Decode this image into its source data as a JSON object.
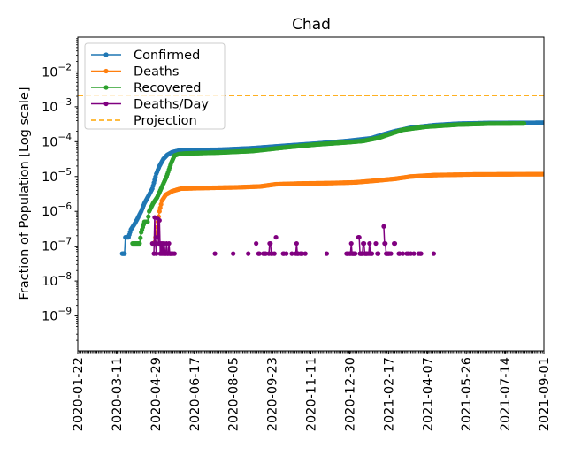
{
  "chart_data": {
    "type": "line",
    "title": "Chad",
    "xlabel": "",
    "ylabel": "Fraction of Population [Log scale]",
    "yscale": "log",
    "ylim": [
      1e-10,
      0.1
    ],
    "x_origin": "2020-01-22",
    "x_unit": "days since x_origin",
    "xlim": [
      0,
      588
    ],
    "x_tick_labels": [
      "2020-01-22",
      "2020-03-11",
      "2020-04-29",
      "2020-06-17",
      "2020-08-05",
      "2020-09-23",
      "2020-11-11",
      "2020-12-30",
      "2021-02-17",
      "2021-04-07",
      "2021-05-26",
      "2021-07-14",
      "2021-09-01"
    ],
    "y_ticks": [
      {
        "value": 0.01,
        "base": "10",
        "exp": "−2"
      },
      {
        "value": 0.001,
        "base": "10",
        "exp": "−3"
      },
      {
        "value": 0.0001,
        "base": "10",
        "exp": "−4"
      },
      {
        "value": 1e-05,
        "base": "10",
        "exp": "−5"
      },
      {
        "value": 1e-06,
        "base": "10",
        "exp": "−6"
      },
      {
        "value": 1e-07,
        "base": "10",
        "exp": "−7"
      },
      {
        "value": 1e-08,
        "base": "10",
        "exp": "−8"
      },
      {
        "value": 1e-09,
        "base": "10",
        "exp": "−9"
      }
    ],
    "grid": false,
    "legend_position": "top-left",
    "series": [
      {
        "name": "Confirmed",
        "color": "#1f77b4",
        "style": "line-dots",
        "points": [
          [
            56,
            6.1e-08
          ],
          [
            59,
            6.1e-08
          ],
          [
            60,
            1.8e-07
          ],
          [
            64,
            1.8e-07
          ],
          [
            67,
            3e-07
          ],
          [
            72,
            4.5e-07
          ],
          [
            75,
            6e-07
          ],
          [
            80,
            1e-06
          ],
          [
            84,
            1.7e-06
          ],
          [
            90,
            3e-06
          ],
          [
            94,
            4.5e-06
          ],
          [
            97,
            8e-06
          ],
          [
            99,
            1.2e-05
          ],
          [
            103,
            2e-05
          ],
          [
            108,
            3.2e-05
          ],
          [
            113,
            4.2e-05
          ],
          [
            119,
            5e-05
          ],
          [
            127,
            5.5e-05
          ],
          [
            136,
            5.7e-05
          ],
          [
            180,
            5.9e-05
          ],
          [
            220,
            6.5e-05
          ],
          [
            260,
            7.6e-05
          ],
          [
            300,
            8.8e-05
          ],
          [
            340,
            0.000105
          ],
          [
            370,
            0.000125
          ],
          [
            385,
            0.00016
          ],
          [
            400,
            0.0002
          ],
          [
            420,
            0.00025
          ],
          [
            450,
            0.0003
          ],
          [
            480,
            0.00033
          ],
          [
            520,
            0.000345
          ],
          [
            588,
            0.00035
          ]
        ]
      },
      {
        "name": "Deaths",
        "color": "#ff7f0e",
        "style": "line-dots",
        "points": [
          [
            97,
            1.3e-07
          ],
          [
            99,
            2.5e-07
          ],
          [
            101,
            5e-07
          ],
          [
            103,
            1e-06
          ],
          [
            106,
            2e-06
          ],
          [
            111,
            3e-06
          ],
          [
            119,
            3.8e-06
          ],
          [
            130,
            4.5e-06
          ],
          [
            160,
            4.7e-06
          ],
          [
            200,
            4.9e-06
          ],
          [
            230,
            5.2e-06
          ],
          [
            250,
            6e-06
          ],
          [
            280,
            6.3e-06
          ],
          [
            320,
            6.5e-06
          ],
          [
            350,
            6.8e-06
          ],
          [
            375,
            7.6e-06
          ],
          [
            400,
            8.6e-06
          ],
          [
            420,
            1e-05
          ],
          [
            450,
            1.1e-05
          ],
          [
            500,
            1.15e-05
          ],
          [
            588,
            1.17e-05
          ]
        ]
      },
      {
        "name": "Recovered",
        "color": "#2ca02c",
        "style": "line-dots",
        "points": [
          [
            69,
            1.2e-07
          ],
          [
            78,
            1.2e-07
          ],
          [
            80,
            2.5e-07
          ],
          [
            84,
            5e-07
          ],
          [
            88,
            5e-07
          ],
          [
            90,
            1e-06
          ],
          [
            95,
            1.7e-06
          ],
          [
            100,
            2.5e-06
          ],
          [
            106,
            5e-06
          ],
          [
            112,
            1e-05
          ],
          [
            118,
            2.5e-05
          ],
          [
            122,
            4e-05
          ],
          [
            127,
            4.4e-05
          ],
          [
            136,
            4.6e-05
          ],
          [
            180,
            4.9e-05
          ],
          [
            220,
            5.4e-05
          ],
          [
            260,
            6.8e-05
          ],
          [
            300,
            8.3e-05
          ],
          [
            340,
            9.6e-05
          ],
          [
            360,
            0.000105
          ],
          [
            380,
            0.00013
          ],
          [
            395,
            0.00017
          ],
          [
            410,
            0.00022
          ],
          [
            440,
            0.00027
          ],
          [
            480,
            0.00031
          ],
          [
            520,
            0.00033
          ],
          [
            563,
            0.000335
          ]
        ]
      },
      {
        "name": "Deaths/Day",
        "color": "#800080",
        "style": "stem-dots",
        "points": [
          [
            94,
            1.2e-07
          ],
          [
            96,
            6.1e-08
          ],
          [
            97,
            6.7e-07
          ],
          [
            98,
            1.2e-07
          ],
          [
            99,
            6.1e-08
          ],
          [
            100,
            1.8e-07
          ],
          [
            101,
            6.1e-07
          ],
          [
            102,
            1.2e-07
          ],
          [
            103,
            5.5e-07
          ],
          [
            104,
            6.1e-08
          ],
          [
            105,
            1.2e-07
          ],
          [
            106,
            6.1e-08
          ],
          [
            107,
            1.2e-07
          ],
          [
            108,
            6.1e-08
          ],
          [
            109,
            1.2e-07
          ],
          [
            110,
            6.1e-08
          ],
          [
            111,
            6.1e-08
          ],
          [
            112,
            1.2e-07
          ],
          [
            113,
            6.1e-08
          ],
          [
            114,
            6.1e-08
          ],
          [
            115,
            1.2e-07
          ],
          [
            116,
            6.1e-08
          ],
          [
            117,
            6.1e-08
          ],
          [
            118,
            6.1e-08
          ],
          [
            120,
            6.1e-08
          ],
          [
            122,
            6.1e-08
          ],
          [
            173,
            6.1e-08
          ],
          [
            196,
            6.1e-08
          ],
          [
            215,
            6.1e-08
          ],
          [
            225,
            1.2e-07
          ],
          [
            228,
            6.1e-08
          ],
          [
            229,
            6.1e-08
          ],
          [
            234,
            6.1e-08
          ],
          [
            236,
            6.1e-08
          ],
          [
            237,
            6.1e-08
          ],
          [
            241,
            6.1e-08
          ],
          [
            242,
            1.2e-07
          ],
          [
            243,
            1.2e-07
          ],
          [
            244,
            6.1e-08
          ],
          [
            245,
            6.1e-08
          ],
          [
            248,
            6.1e-08
          ],
          [
            250,
            1.8e-07
          ],
          [
            259,
            6.1e-08
          ],
          [
            260,
            6.1e-08
          ],
          [
            263,
            6.1e-08
          ],
          [
            270,
            6.1e-08
          ],
          [
            275,
            6.1e-08
          ],
          [
            276,
            1.2e-07
          ],
          [
            277,
            6.1e-08
          ],
          [
            278,
            6.1e-08
          ],
          [
            281,
            6.1e-08
          ],
          [
            282,
            6.1e-08
          ],
          [
            283,
            6.1e-08
          ],
          [
            287,
            6.1e-08
          ],
          [
            314,
            6.1e-08
          ],
          [
            339,
            6.1e-08
          ],
          [
            340,
            6.1e-08
          ],
          [
            341,
            6.1e-08
          ],
          [
            343,
            6.1e-08
          ],
          [
            344,
            6.1e-08
          ],
          [
            345,
            1.2e-07
          ],
          [
            346,
            6.1e-08
          ],
          [
            347,
            6.1e-08
          ],
          [
            348,
            6.1e-08
          ],
          [
            349,
            6.1e-08
          ],
          [
            350,
            6.1e-08
          ],
          [
            354,
            1.8e-07
          ],
          [
            355,
            1.8e-07
          ],
          [
            356,
            6.1e-08
          ],
          [
            357,
            6.1e-08
          ],
          [
            358,
            6.1e-08
          ],
          [
            359,
            6.1e-08
          ],
          [
            360,
            1.2e-07
          ],
          [
            361,
            1.2e-07
          ],
          [
            362,
            6.1e-08
          ],
          [
            363,
            6.1e-08
          ],
          [
            364,
            6.1e-08
          ],
          [
            365,
            6.1e-08
          ],
          [
            367,
            6.1e-08
          ],
          [
            368,
            1.2e-07
          ],
          [
            369,
            6.1e-08
          ],
          [
            370,
            6.1e-08
          ],
          [
            371,
            6.1e-08
          ],
          [
            376,
            1.2e-07
          ],
          [
            378,
            6.1e-08
          ],
          [
            379,
            6.1e-08
          ],
          [
            386,
            3.7e-07
          ],
          [
            387,
            1.2e-07
          ],
          [
            388,
            1.2e-07
          ],
          [
            389,
            6.1e-08
          ],
          [
            390,
            6.1e-08
          ],
          [
            391,
            6.1e-08
          ],
          [
            392,
            6.1e-08
          ],
          [
            393,
            6.1e-08
          ],
          [
            395,
            6.1e-08
          ],
          [
            399,
            1.2e-07
          ],
          [
            400,
            1.2e-07
          ],
          [
            405,
            6.1e-08
          ],
          [
            406,
            6.1e-08
          ],
          [
            410,
            6.1e-08
          ],
          [
            415,
            6.1e-08
          ],
          [
            417,
            6.1e-08
          ],
          [
            420,
            6.1e-08
          ],
          [
            424,
            6.1e-08
          ],
          [
            430,
            6.1e-08
          ],
          [
            432,
            6.1e-08
          ],
          [
            433,
            6.1e-08
          ],
          [
            449,
            6.1e-08
          ]
        ]
      },
      {
        "name": "Projection",
        "color": "#ffa500",
        "style": "dashed-hline",
        "value": 0.0021
      }
    ]
  }
}
